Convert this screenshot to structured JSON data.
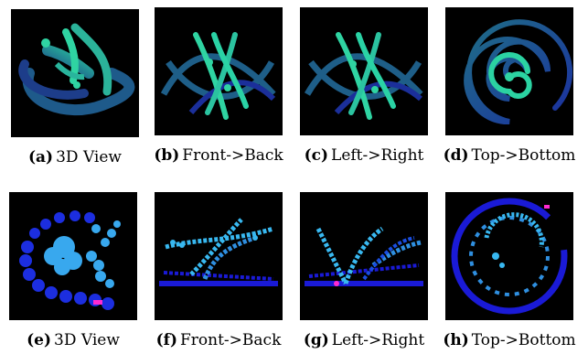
{
  "panels": [
    {
      "tag": "(a)",
      "label": "3D View"
    },
    {
      "tag": "(b)",
      "label": "Front->Back"
    },
    {
      "tag": "(c)",
      "label": "Left->Right"
    },
    {
      "tag": "(d)",
      "label": "Top->Bottom"
    },
    {
      "tag": "(e)",
      "label": "3D View"
    },
    {
      "tag": "(f)",
      "label": "Front->Back"
    },
    {
      "tag": "(g)",
      "label": "Left->Right"
    },
    {
      "tag": "(h)",
      "label": "Top->Bottom"
    }
  ],
  "colors": {
    "background": "#000000",
    "tube_dark": "#1b2f7a",
    "tube_mid": "#1f6e86",
    "tube_light": "#29c79a",
    "glyph_dark": "#1a1ad6",
    "glyph_light": "#38b8f0",
    "highlight": "#ff2ad0"
  }
}
